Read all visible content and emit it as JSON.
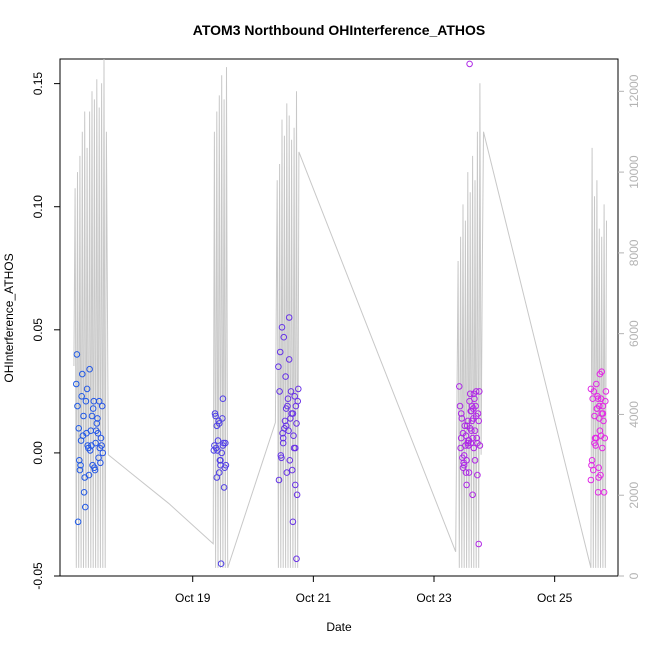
{
  "chart_data": {
    "type": "scatter",
    "title": "ATOM3 Northbound OHInterference_ATHOS",
    "xlabel": "Date",
    "ylabel": "OHInterference_ATHOS",
    "x_unit": "days in October",
    "xlim": [
      16.8,
      26.05
    ],
    "ylim": [
      -0.05,
      0.16
    ],
    "y2lim": [
      0,
      12800
    ],
    "x_ticks": [
      19,
      21,
      23,
      25
    ],
    "x_tick_labels": [
      "Oct 19",
      "Oct 21",
      "Oct 23",
      "Oct 25"
    ],
    "y_ticks": [
      -0.05,
      0.0,
      0.05,
      0.1,
      0.15
    ],
    "y_tick_labels": [
      "-0.05",
      "0.00",
      "0.05",
      "0.10",
      "0.15"
    ],
    "y2_ticks": [
      0,
      2000,
      4000,
      6000,
      8000,
      10000,
      12000
    ],
    "y2_tick_labels": [
      "0",
      "2000",
      "4000",
      "6000",
      "8000",
      "10000",
      "12000"
    ],
    "grid": false,
    "colors": {
      "ohi_start": "#1e5ae6",
      "ohi_mid": "#7a2ae6",
      "ohi_end": "#e628e6",
      "altitude": "#c8c8c8",
      "axis": "#000000",
      "right_axis": "#b3b3b3"
    },
    "series": [
      {
        "role": "OHInterference_ATHOS (left axis, points colored by time)",
        "x": [
          17.07,
          17.09,
          17.11,
          17.13,
          17.15,
          17.17,
          17.19,
          17.21,
          17.23,
          17.25,
          17.27,
          17.29,
          17.31,
          17.33,
          17.35,
          17.37,
          17.39,
          17.41,
          17.43,
          17.45,
          17.47,
          17.49,
          17.51,
          17.08,
          17.12,
          17.16,
          17.2,
          17.24,
          17.28,
          17.32,
          17.36,
          17.4,
          17.44,
          17.48,
          17.1,
          17.18,
          17.26,
          17.34,
          17.42,
          17.5,
          17.14,
          17.22,
          17.3,
          17.38,
          17.46,
          19.36,
          19.38,
          19.4,
          19.42,
          19.44,
          19.46,
          19.48,
          19.5,
          19.52,
          19.54,
          19.37,
          19.41,
          19.45,
          19.49,
          19.53,
          19.39,
          19.43,
          19.47,
          19.51,
          19.55,
          19.35,
          19.44,
          19.5,
          19.4,
          19.46,
          20.42,
          20.45,
          20.48,
          20.51,
          20.54,
          20.57,
          20.6,
          20.63,
          20.66,
          20.69,
          20.72,
          20.75,
          20.44,
          20.5,
          20.56,
          20.62,
          20.68,
          20.74,
          20.47,
          20.53,
          20.59,
          20.65,
          20.71,
          20.43,
          20.49,
          20.55,
          20.61,
          20.67,
          20.73,
          20.46,
          20.52,
          20.58,
          20.64,
          20.7,
          20.5,
          20.6,
          20.66,
          20.55,
          20.7,
          20.72,
          23.42,
          23.45,
          23.48,
          23.51,
          23.54,
          23.57,
          23.6,
          23.63,
          23.66,
          23.69,
          23.72,
          23.75,
          23.44,
          23.5,
          23.56,
          23.62,
          23.68,
          23.74,
          23.47,
          23.53,
          23.59,
          23.65,
          23.71,
          23.43,
          23.49,
          23.55,
          23.61,
          23.67,
          23.73,
          23.46,
          23.52,
          23.58,
          23.64,
          23.7,
          23.76,
          23.5,
          23.6,
          23.56,
          23.66,
          23.72,
          23.63,
          23.54,
          23.58,
          23.68,
          23.62,
          23.7,
          23.48,
          23.74,
          23.45,
          23.65,
          23.53,
          23.57,
          23.61,
          23.59,
          23.64,
          25.6,
          25.63,
          25.66,
          25.69,
          25.72,
          25.75,
          25.78,
          25.81,
          25.84,
          25.62,
          25.68,
          25.74,
          25.8,
          25.65,
          25.71,
          25.77,
          25.83,
          25.61,
          25.67,
          25.73,
          25.79,
          25.64,
          25.7,
          25.76,
          25.82,
          25.66,
          25.75,
          25.78,
          25.72,
          25.69,
          25.6,
          25.8,
          25.74,
          25.77,
          25.7,
          25.85,
          25.73
        ],
        "y": [
          0.028,
          0.019,
          0.01,
          -0.007,
          0.005,
          0.032,
          0.015,
          -0.01,
          0.021,
          0.026,
          0.002,
          0.034,
          0.009,
          0.015,
          0.018,
          -0.006,
          0.004,
          0.012,
          0.008,
          0.021,
          -0.004,
          0.003,
          0.0,
          0.04,
          -0.003,
          0.023,
          -0.016,
          0.008,
          -0.009,
          0.003,
          0.021,
          0.009,
          -0.002,
          0.006,
          -0.028,
          0.007,
          0.003,
          -0.005,
          0.014,
          0.019,
          -0.005,
          -0.022,
          0.001,
          -0.007,
          0.002,
          0.003,
          0.015,
          -0.01,
          0.005,
          0.012,
          -0.005,
          0.0,
          0.022,
          -0.014,
          0.004,
          0.016,
          0.001,
          -0.003,
          0.014,
          -0.006,
          0.002,
          0.013,
          -0.045,
          0.004,
          -0.005,
          0.001,
          -0.008,
          0.003,
          0.011,
          -0.003,
          0.035,
          0.041,
          0.051,
          0.047,
          0.031,
          0.019,
          0.038,
          0.025,
          0.016,
          0.023,
          0.012,
          0.026,
          0.025,
          0.006,
          -0.008,
          0.014,
          0.002,
          0.021,
          -0.002,
          0.013,
          0.009,
          -0.007,
          0.019,
          -0.011,
          0.008,
          0.018,
          -0.003,
          0.007,
          -0.017,
          -0.001,
          0.01,
          0.022,
          0.016,
          -0.013,
          0.004,
          0.055,
          -0.028,
          0.011,
          0.002,
          -0.043,
          0.027,
          0.016,
          0.008,
          0.011,
          -0.003,
          0.005,
          0.024,
          0.013,
          0.002,
          0.019,
          -0.009,
          0.025,
          0.002,
          -0.005,
          0.004,
          0.017,
          0.009,
          0.013,
          -0.002,
          0.007,
          0.021,
          0.018,
          0.006,
          0.019,
          -0.004,
          0.011,
          0.004,
          0.022,
          0.016,
          0.014,
          0.003,
          -0.008,
          0.006,
          0.025,
          0.003,
          -0.001,
          0.01,
          0.013,
          0.024,
          0.004,
          0.019,
          -0.013,
          0.005,
          -0.003,
          0.009,
          0.015,
          -0.006,
          -0.037,
          0.006,
          0.014,
          -0.008,
          0.003,
          0.017,
          0.158,
          -0.017,
          0.026,
          0.022,
          0.015,
          0.028,
          0.022,
          0.009,
          0.016,
          0.013,
          0.021,
          -0.003,
          0.003,
          0.019,
          0.016,
          0.025,
          0.023,
          0.007,
          0.006,
          -0.005,
          0.006,
          -0.01,
          0.002,
          -0.007,
          0.018,
          -0.009,
          -0.016,
          0.004,
          0.032,
          0.033,
          -0.016,
          0.006,
          -0.011,
          0.019,
          0.014,
          0.022,
          0.018,
          0.025,
          -0.006
        ]
      },
      {
        "role": "altitude (right axis, grey line)",
        "x": [
          17.03,
          17.05,
          17.07,
          17.09,
          17.11,
          17.13,
          17.15,
          17.17,
          17.19,
          17.21,
          17.23,
          17.25,
          17.27,
          17.29,
          17.31,
          17.33,
          17.35,
          17.37,
          17.39,
          17.41,
          17.43,
          17.45,
          17.47,
          17.49,
          17.51,
          17.53,
          17.55,
          17.57,
          17.6,
          18.6,
          19.34,
          19.36,
          19.38,
          19.4,
          19.42,
          19.44,
          19.46,
          19.48,
          19.5,
          19.52,
          19.54,
          19.56,
          19.58,
          20.37,
          20.4,
          20.42,
          20.44,
          20.46,
          20.48,
          20.5,
          20.52,
          20.54,
          20.56,
          20.58,
          20.6,
          20.62,
          20.64,
          20.66,
          20.68,
          20.7,
          20.72,
          20.74,
          20.76,
          23.36,
          23.4,
          23.42,
          23.44,
          23.46,
          23.48,
          23.5,
          23.52,
          23.54,
          23.56,
          23.58,
          23.6,
          23.62,
          23.64,
          23.66,
          23.68,
          23.7,
          23.72,
          23.74,
          23.76,
          23.78,
          23.8,
          23.82,
          25.6,
          25.62,
          25.64,
          25.66,
          25.68,
          25.7,
          25.72,
          25.74,
          25.76,
          25.78,
          25.8,
          25.82,
          25.84,
          25.86
        ],
        "y": [
          5200,
          9600,
          200,
          10000,
          200,
          10400,
          200,
          11000,
          200,
          11500,
          200,
          10600,
          200,
          11500,
          200,
          12000,
          200,
          11800,
          200,
          12300,
          200,
          11600,
          200,
          12200,
          200,
          12800,
          200,
          11000,
          3000,
          1800,
          800,
          11000,
          200,
          11500,
          200,
          11900,
          200,
          12400,
          200,
          11800,
          200,
          12600,
          200,
          3800,
          9800,
          200,
          10200,
          200,
          11300,
          200,
          10900,
          200,
          11700,
          200,
          11400,
          200,
          10800,
          200,
          11100,
          200,
          12000,
          200,
          10500,
          600,
          7800,
          200,
          8400,
          200,
          9200,
          200,
          8800,
          200,
          10000,
          200,
          9500,
          200,
          10400,
          200,
          9800,
          200,
          11000,
          200,
          12200,
          3000,
          7600,
          11000,
          200,
          10600,
          200,
          9400,
          200,
          9800,
          200,
          8600,
          200,
          8400,
          200,
          9200,
          200,
          8800
        ]
      }
    ]
  }
}
